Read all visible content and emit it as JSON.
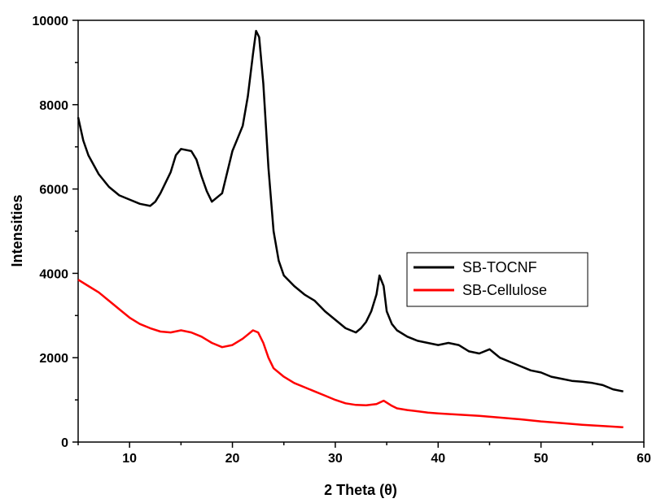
{
  "chart_data": {
    "type": "line",
    "title": "",
    "xlabel": "2 Theta (θ)",
    "ylabel": "Intensities",
    "xlim": [
      5,
      60
    ],
    "ylim": [
      0,
      10000
    ],
    "x_ticks": [
      10,
      20,
      30,
      40,
      50,
      60
    ],
    "y_ticks": [
      0,
      2000,
      4000,
      6000,
      8000,
      10000
    ],
    "legend_position": "right",
    "grid": false,
    "series": [
      {
        "name": "SB-TOCNF",
        "color": "#000000",
        "x": [
          5,
          5.5,
          6,
          7,
          8,
          9,
          10,
          11,
          12,
          12.5,
          13,
          14,
          14.5,
          15,
          16,
          16.5,
          17,
          17.5,
          18,
          19,
          20,
          20.5,
          21,
          21.5,
          22,
          22.3,
          22.6,
          23,
          23.5,
          24,
          24.5,
          25,
          26,
          27,
          28,
          29,
          30,
          31,
          32,
          32.5,
          33,
          33.5,
          34,
          34.3,
          34.7,
          35,
          35.5,
          36,
          37,
          38,
          39,
          40,
          41,
          42,
          43,
          44,
          45,
          45.5,
          46,
          47,
          48,
          49,
          50,
          51,
          52,
          53,
          54,
          55,
          56,
          57,
          58
        ],
        "y": [
          7700,
          7150,
          6800,
          6350,
          6050,
          5850,
          5750,
          5650,
          5600,
          5700,
          5900,
          6400,
          6800,
          6950,
          6900,
          6700,
          6300,
          5950,
          5700,
          5900,
          6900,
          7200,
          7500,
          8200,
          9200,
          9750,
          9600,
          8500,
          6500,
          5000,
          4300,
          3950,
          3700,
          3500,
          3350,
          3100,
          2900,
          2700,
          2600,
          2700,
          2850,
          3100,
          3500,
          3950,
          3700,
          3100,
          2800,
          2650,
          2500,
          2400,
          2350,
          2300,
          2350,
          2300,
          2150,
          2100,
          2200,
          2100,
          2000,
          1900,
          1800,
          1700,
          1650,
          1550,
          1500,
          1450,
          1430,
          1400,
          1350,
          1250,
          1200
        ]
      },
      {
        "name": "SB-Cellulose",
        "color": "#ff0000",
        "x": [
          5,
          6,
          7,
          8,
          9,
          10,
          11,
          12,
          13,
          14,
          15,
          16,
          17,
          18,
          19,
          20,
          21,
          21.5,
          22,
          22.5,
          23,
          23.5,
          24,
          25,
          26,
          27,
          28,
          29,
          30,
          31,
          32,
          33,
          34,
          34.7,
          35.5,
          36,
          37,
          38,
          39,
          40,
          42,
          44,
          46,
          48,
          50,
          52,
          54,
          56,
          58
        ],
        "y": [
          3850,
          3700,
          3550,
          3350,
          3150,
          2950,
          2800,
          2700,
          2620,
          2600,
          2650,
          2600,
          2500,
          2350,
          2250,
          2300,
          2450,
          2550,
          2650,
          2600,
          2350,
          2000,
          1750,
          1550,
          1400,
          1300,
          1200,
          1100,
          1000,
          920,
          880,
          870,
          900,
          980,
          860,
          800,
          760,
          730,
          700,
          680,
          650,
          620,
          580,
          540,
          490,
          450,
          410,
          380,
          350
        ]
      }
    ]
  }
}
